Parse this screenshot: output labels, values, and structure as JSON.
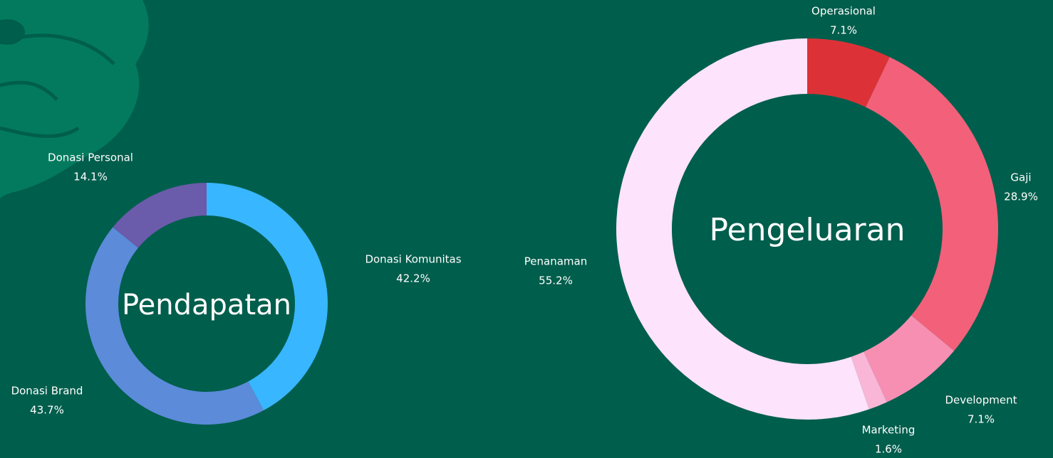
{
  "chart_data": [
    {
      "type": "donut",
      "title": "Pendapatan",
      "categories": [
        "Donasi Komunitas",
        "Donasi Brand",
        "Donasi Personal"
      ],
      "values": [
        42.2,
        43.7,
        14.1
      ],
      "value_labels": [
        "42.2%",
        "43.7%",
        "14.1%"
      ],
      "colors": [
        "#38b6ff",
        "#5b8bd9",
        "#6a5bab"
      ]
    },
    {
      "type": "donut",
      "title": "Pengeluaran",
      "categories": [
        "Operasional",
        "Gaji",
        "Development",
        "Marketing",
        "Penanaman"
      ],
      "values": [
        7.1,
        28.9,
        7.1,
        1.6,
        55.2
      ],
      "value_labels": [
        "7.1%",
        "28.9%",
        "7.1%",
        "1.6%",
        "55.2%"
      ],
      "colors": [
        "#dc3237",
        "#f2607a",
        "#f78fb3",
        "#f9b6d6",
        "#fde3fb"
      ]
    }
  ]
}
